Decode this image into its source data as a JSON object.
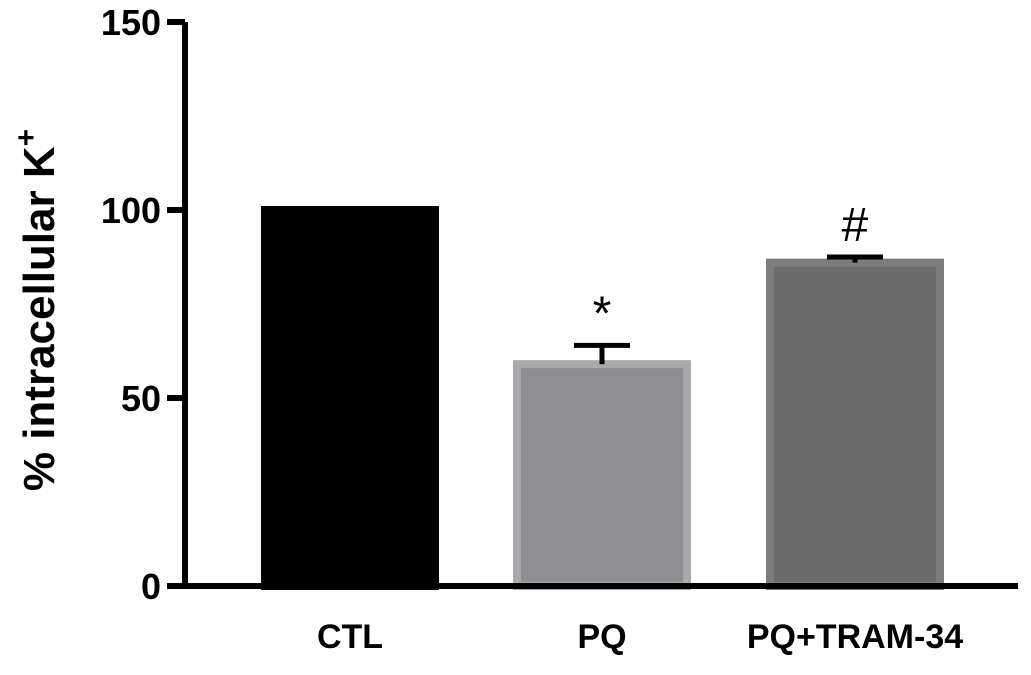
{
  "chart_data": {
    "type": "bar",
    "title": "",
    "xlabel": "",
    "ylabel": "% intracellular K",
    "ylabel_superscript": "+",
    "ylim": [
      0,
      150
    ],
    "yticks": [
      "0",
      "50",
      "100",
      "150"
    ],
    "categories": [
      "CTL",
      "PQ",
      "PQ+TRAM-34"
    ],
    "values": [
      100,
      59,
      86
    ],
    "errors": [
      0,
      5,
      1.5
    ],
    "annotations": [
      "",
      "*",
      "#"
    ],
    "colors": [
      "#000000",
      "#8e8e92",
      "#6b6b6b"
    ],
    "border_colors": [
      "#000000",
      "#a9a9ac",
      "#7c7c7c"
    ],
    "grid": false
  }
}
